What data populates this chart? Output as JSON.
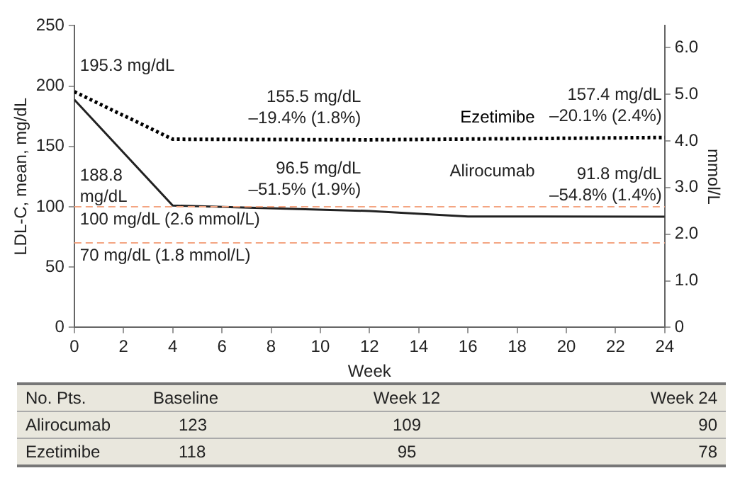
{
  "chart_data": {
    "type": "line",
    "xlabel": "Week",
    "ylabel": "LDL-C, mean, mg/dL",
    "y2label": "mmol/L",
    "series": [
      {
        "name": "Ezetimibe",
        "color": "#000000",
        "line_style": "dotted",
        "x": [
          0,
          4,
          12,
          24
        ],
        "values": [
          195.3,
          156,
          155.5,
          157.4
        ]
      },
      {
        "name": "Alirocumab",
        "color": "#222222",
        "line_style": "solid",
        "x": [
          0,
          4,
          12,
          16,
          24
        ],
        "values": [
          188.8,
          101,
          96.5,
          92,
          91.8
        ]
      }
    ],
    "xlim": [
      0,
      24
    ],
    "xticks": [
      0,
      2,
      4,
      6,
      8,
      10,
      12,
      14,
      16,
      18,
      20,
      22,
      24
    ],
    "ylim": [
      0,
      250
    ],
    "yticks": [
      0,
      50,
      100,
      150,
      200,
      250
    ],
    "y2lim": [
      0,
      6.47
    ],
    "y2ticks": [
      0,
      {
        "value": 1,
        "label": "1.0"
      },
      {
        "value": 2,
        "label": "2.0"
      },
      {
        "value": 3,
        "label": "3.0"
      },
      {
        "value": 4,
        "label": "4.0"
      },
      {
        "value": 5,
        "label": "5.0"
      },
      {
        "value": 6,
        "label": "6.0"
      }
    ],
    "grid": false,
    "marker": "none",
    "legend": false,
    "ref_lines": [
      {
        "axis": "y",
        "value": 100,
        "label": "100 mg/dL (2.6 mmol/L)",
        "color": "#f4a582",
        "line_style": "dashed"
      },
      {
        "axis": "y",
        "value": 70,
        "label": "70 mg/dL (1.8 mmol/L)",
        "color": "#f4a582",
        "line_style": "dashed"
      }
    ],
    "annotations": [
      {
        "text": "195.3 mg/dL",
        "x": 0,
        "y": 195.3
      },
      "188.8\nmg/dL",
      {
        "text": "155.5 mg/dL\n–19.4% (1.8%)",
        "x": 12,
        "y": 155.5
      },
      {
        "text": "157.4 mg/dL\n–20.1% (2.4%)",
        "x": 24,
        "y": 157.4
      },
      {
        "text": "96.5 mg/dL\n–51.5% (1.9%)",
        "x": 12,
        "y": 96.5
      },
      {
        "text": "91.8 mg/dL\n–54.8% (1.4%)",
        "x": 24,
        "y": 91.8
      },
      "No. Pts.",
      "Baseline",
      "Week 12",
      "Week 24",
      "Alirocumab",
      "123",
      "109",
      "90",
      "Ezetimibe",
      "118",
      "95",
      "78"
    ]
  }
}
